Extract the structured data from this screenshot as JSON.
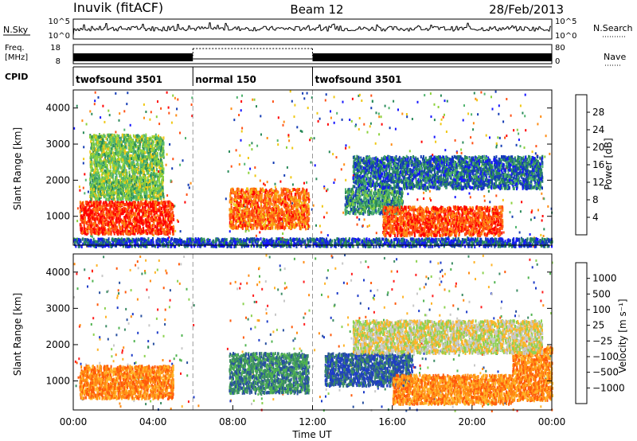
{
  "header": {
    "station": "Inuvik (fitACF)",
    "beam": "Beam 12",
    "date": "28/Feb/2013"
  },
  "top_panel": {
    "left_label": "N.Sky",
    "right_label": "N.Search",
    "left_ticks": [
      "10^5",
      "10^0"
    ],
    "right_ticks": [
      "10^5",
      "10^0"
    ]
  },
  "freq_panel": {
    "left_label_1": "Freq.",
    "left_label_2": "[MHz]",
    "right_label": "Nave",
    "left_ticks": [
      "18",
      "8"
    ],
    "right_ticks": [
      "80",
      "0"
    ]
  },
  "cpid": {
    "label": "CPID",
    "segments": [
      {
        "name": "twofsound 3501",
        "start": 0,
        "end": 6
      },
      {
        "name": "normal 150",
        "start": 6,
        "end": 12
      },
      {
        "name": "twofsound 3501",
        "start": 12,
        "end": 24
      }
    ]
  },
  "colors": {
    "power": [
      "#1414ff",
      "#143cb4",
      "#2a8a5a",
      "#4fb46e",
      "#8cd23c",
      "#f0c814",
      "#ff8c14",
      "#ff5014",
      "#ff0000"
    ],
    "velocity": [
      "#1e3cc8",
      "#2850a0",
      "#3c8c64",
      "#50b450",
      "#8cd250",
      "#c8c8c8",
      "#ffb428",
      "#ff8c14",
      "#ff5a0a",
      "#ff1e1e"
    ]
  },
  "chart_data": [
    {
      "type": "heatmap",
      "name": "power",
      "ylabel": "Slant Range [km]",
      "yticks": [
        1000,
        2000,
        3000,
        4000
      ],
      "ylim": [
        200,
        4500
      ],
      "xlim": [
        0,
        24
      ],
      "colorbar": {
        "label": "Power [dB]",
        "ticks": [
          "28",
          "24",
          "20",
          "16",
          "12",
          "8",
          "4"
        ]
      },
      "blobs": [
        {
          "t0": 0.3,
          "t1": 5.0,
          "r0": 550,
          "r1": 1450,
          "level": 7.5
        },
        {
          "t0": 0.8,
          "t1": 4.5,
          "r0": 1500,
          "r1": 3300,
          "level": 3.5
        },
        {
          "t0": 7.8,
          "t1": 11.8,
          "r0": 700,
          "r1": 1800,
          "level": 6.5
        },
        {
          "t0": 13.6,
          "t1": 16.5,
          "r0": 1100,
          "r1": 1800,
          "level": 2.5
        },
        {
          "t0": 15.5,
          "t1": 21.5,
          "r0": 500,
          "r1": 1300,
          "level": 7
        },
        {
          "t0": 14.0,
          "t1": 23.5,
          "r0": 1800,
          "r1": 2700,
          "level": 1.5
        },
        {
          "t0": 0.0,
          "t1": 24.0,
          "r0": 200,
          "r1": 420,
          "level": 1
        }
      ]
    },
    {
      "type": "heatmap",
      "name": "velocity",
      "ylabel": "Slant Range [km]",
      "xlabel": "Time UT",
      "yticks": [
        1000,
        2000,
        3000,
        4000
      ],
      "ylim": [
        200,
        4500
      ],
      "xlim": [
        0,
        24
      ],
      "xticks": [
        "00:00",
        "04:00",
        "08:00",
        "12:00",
        "16:00",
        "20:00",
        "00:00"
      ],
      "colorbar": {
        "label": "Velocity [m s⁻¹]",
        "ticks": [
          "1000",
          "500",
          "100",
          "25",
          "−25",
          "−100",
          "−500",
          "−1000"
        ]
      },
      "blobs": [
        {
          "t0": 0.3,
          "t1": 5.0,
          "r0": 550,
          "r1": 1450,
          "level": 7
        },
        {
          "t0": 7.8,
          "t1": 11.8,
          "r0": 700,
          "r1": 1800,
          "level": 2
        },
        {
          "t0": 12.6,
          "t1": 17.0,
          "r0": 900,
          "r1": 1800,
          "level": 1
        },
        {
          "t0": 16.0,
          "t1": 22.0,
          "r0": 400,
          "r1": 1200,
          "level": 7
        },
        {
          "t0": 22.0,
          "t1": 24.0,
          "r0": 500,
          "r1": 2000,
          "level": 7
        },
        {
          "t0": 14.0,
          "t1": 23.5,
          "r0": 1800,
          "r1": 2700,
          "level": 5
        }
      ]
    }
  ]
}
